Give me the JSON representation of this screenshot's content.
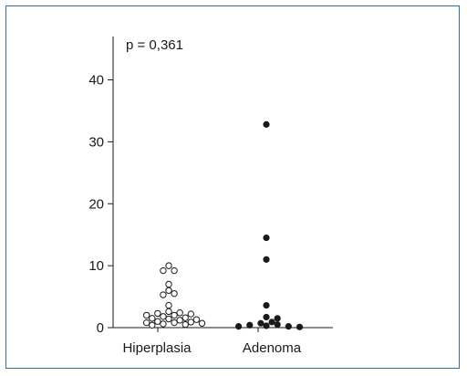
{
  "chart_data": {
    "type": "scatter",
    "title": "",
    "annotation": "p = 0,361",
    "xlabel": "",
    "ylabel": "",
    "categories": [
      "Hiperplasia",
      "Adenoma"
    ],
    "ylim": [
      0,
      47
    ],
    "yticks": [
      0,
      10,
      20,
      30,
      40
    ],
    "grid": false,
    "series": [
      {
        "marker": "open-circle",
        "color": "#1a1a1a",
        "values": [
          10.0,
          9.2,
          9.2,
          7.0,
          6.0,
          5.5,
          5.3,
          3.6,
          2.6,
          2.4,
          2.3,
          2.2,
          2.0,
          2.0,
          1.8,
          1.6,
          1.5,
          1.4,
          1.3,
          1.2,
          1.0,
          0.9,
          0.8,
          0.8,
          0.7,
          0.6,
          0.5,
          0.4
        ]
      },
      {
        "marker": "filled-circle",
        "color": "#1a1a1a",
        "values": [
          32.8,
          14.5,
          11.0,
          3.6,
          1.7,
          1.5,
          0.9,
          0.7,
          0.5,
          0.4,
          0.3,
          0.2,
          0.2,
          0.1
        ]
      }
    ]
  }
}
